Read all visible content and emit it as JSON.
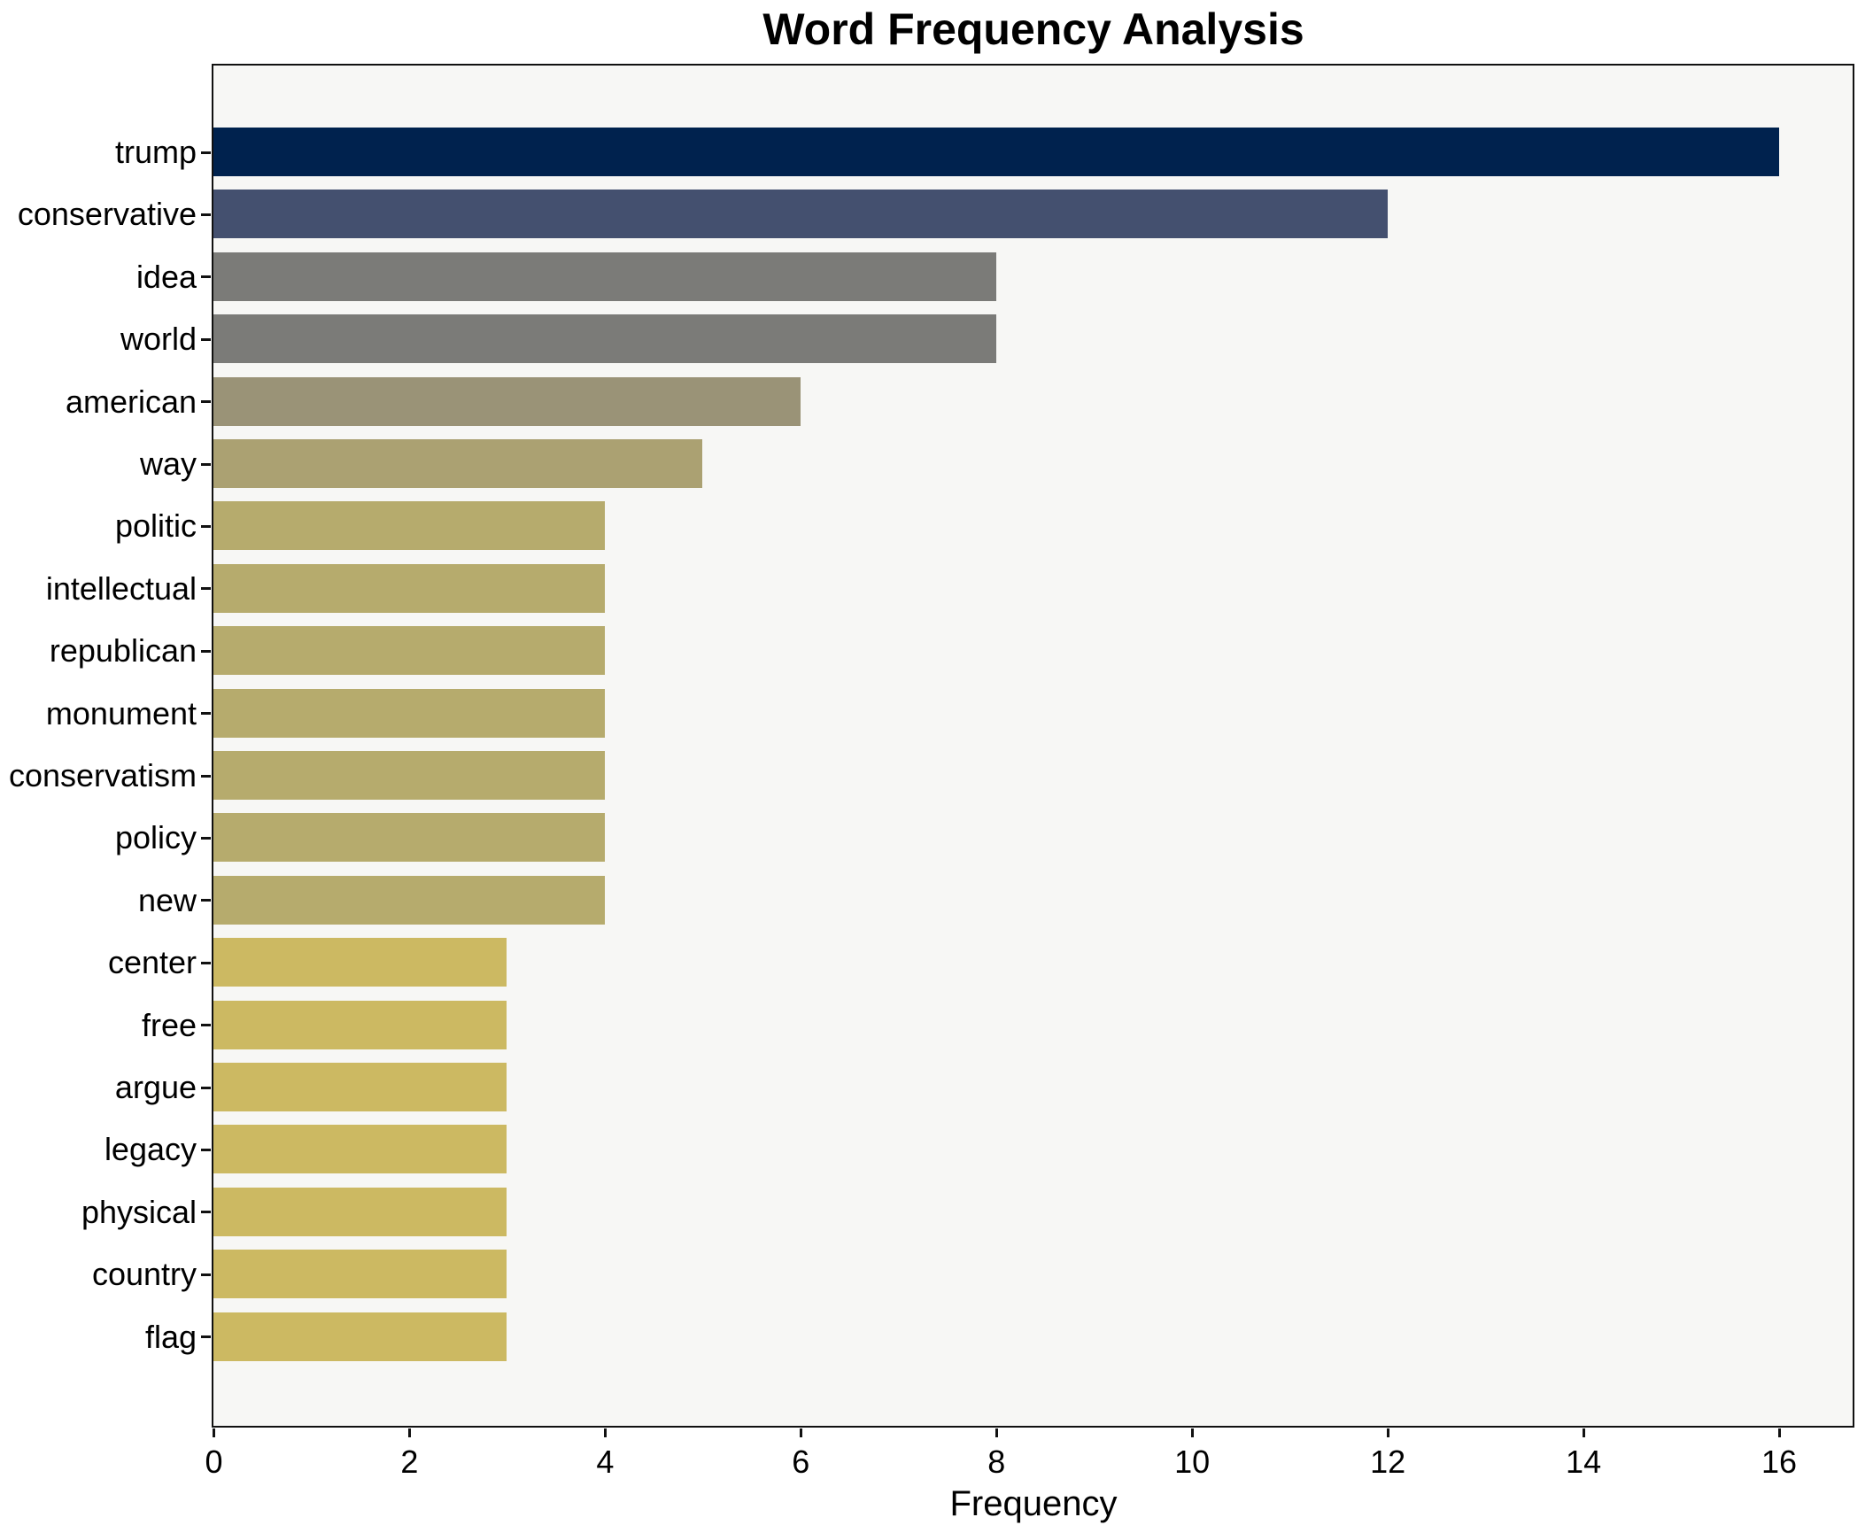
{
  "title": "Word Frequency Analysis",
  "chart_data": {
    "type": "bar",
    "orientation": "horizontal",
    "title": "Word Frequency Analysis",
    "xlabel": "Frequency",
    "ylabel": "",
    "categories": [
      "trump",
      "conservative",
      "idea",
      "world",
      "american",
      "way",
      "politic",
      "intellectual",
      "republican",
      "monument",
      "conservatism",
      "policy",
      "new",
      "center",
      "free",
      "argue",
      "legacy",
      "physical",
      "country",
      "flag"
    ],
    "values": [
      16,
      12,
      8,
      8,
      6,
      5,
      4,
      4,
      4,
      4,
      4,
      4,
      4,
      3,
      3,
      3,
      3,
      3,
      3,
      3
    ],
    "bar_colors": [
      "#00224e",
      "#44506f",
      "#7b7b78",
      "#7b7b78",
      "#9a9377",
      "#aba172",
      "#b6ab6d",
      "#b6ab6d",
      "#b6ab6d",
      "#b6ab6d",
      "#b6ab6d",
      "#b6ab6d",
      "#b6ab6d",
      "#ccb962",
      "#ccb962",
      "#ccb962",
      "#ccb962",
      "#ccb962",
      "#ccb962",
      "#ccb962"
    ],
    "x_ticks": [
      0,
      2,
      4,
      6,
      8,
      10,
      12,
      14,
      16
    ],
    "xlim": [
      0,
      16.75
    ],
    "grid": false,
    "legend": null,
    "plot_bg": "#f7f7f5",
    "figure_bg": "#ffffff",
    "spine_color": "#111111"
  }
}
